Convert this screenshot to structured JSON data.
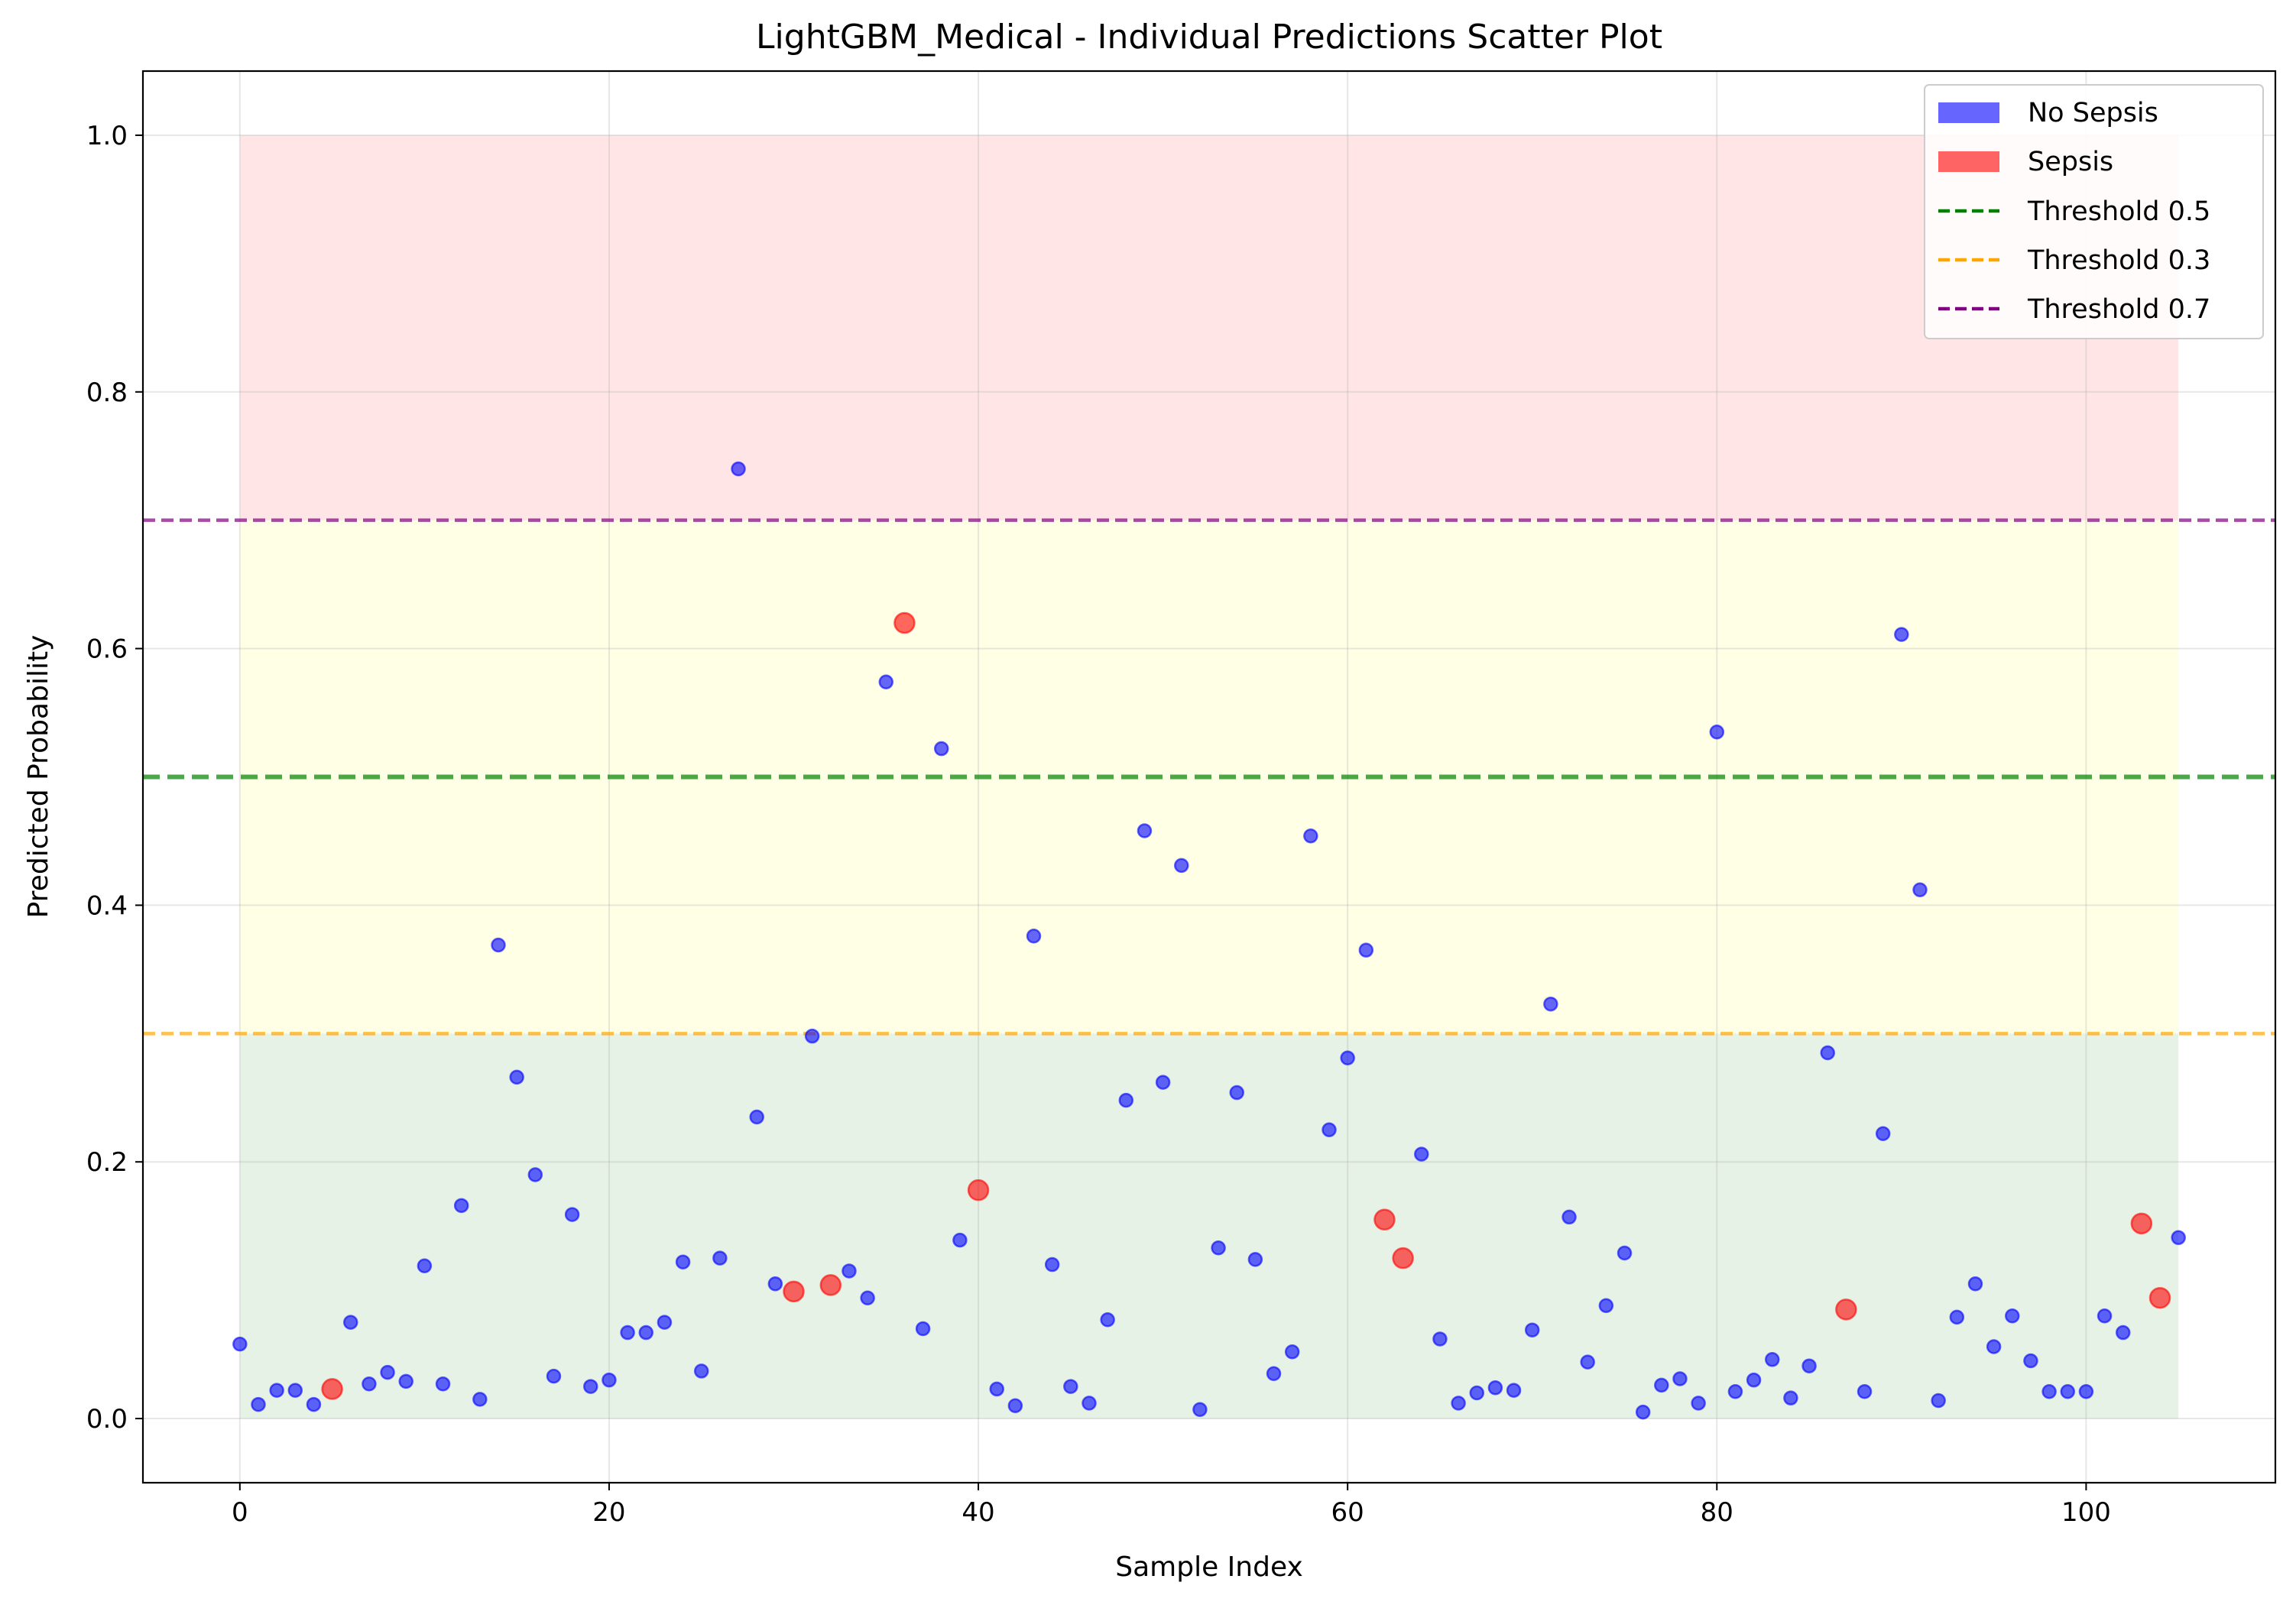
{
  "chart_data": {
    "type": "scatter",
    "title": "LightGBM_Medical - Individual Predictions Scatter Plot",
    "xlabel": "Sample Index",
    "ylabel": "Predicted Probability",
    "xlim": [
      -5.25,
      110.25
    ],
    "ylim": [
      -0.05,
      1.05
    ],
    "xticks": [
      "0",
      "20",
      "40",
      "60",
      "80",
      "100"
    ],
    "yticks": [
      "0.0",
      "0.2",
      "0.4",
      "0.6",
      "0.8",
      "1.0"
    ],
    "grid": true,
    "legend_position": "top-right",
    "zones": [
      {
        "from": 0.0,
        "to": 0.3,
        "color": "#008000"
      },
      {
        "from": 0.3,
        "to": 0.7,
        "color": "#ffff00"
      },
      {
        "from": 0.7,
        "to": 1.0,
        "color": "#ff0000"
      }
    ],
    "zone_x_range": [
      0,
      105
    ],
    "thresholds": [
      {
        "name": "Threshold 0.5",
        "value": 0.5,
        "color": "#008000"
      },
      {
        "name": "Threshold 0.3",
        "value": 0.3,
        "color": "#ffa500"
      },
      {
        "name": "Threshold 0.7",
        "value": 0.7,
        "color": "#800080"
      }
    ],
    "series": [
      {
        "name": "No Sepsis",
        "color": "#0000ff",
        "x": [
          0,
          1,
          2,
          3,
          4,
          6,
          7,
          8,
          9,
          10,
          11,
          12,
          13,
          14,
          15,
          16,
          17,
          18,
          19,
          20,
          21,
          22,
          23,
          24,
          25,
          26,
          27,
          28,
          29,
          31,
          33,
          34,
          35,
          37,
          38,
          39,
          41,
          42,
          43,
          44,
          45,
          46,
          47,
          48,
          49,
          50,
          51,
          52,
          53,
          54,
          55,
          56,
          57,
          58,
          59,
          60,
          61,
          64,
          65,
          66,
          67,
          68,
          69,
          70,
          71,
          72,
          73,
          74,
          75,
          76,
          77,
          78,
          79,
          80,
          81,
          82,
          83,
          84,
          85,
          86,
          88,
          89,
          90,
          91,
          92,
          93,
          94,
          95,
          96,
          97,
          98,
          99,
          100,
          101,
          102,
          105
        ],
        "y": [
          0.058,
          0.011,
          0.022,
          0.022,
          0.011,
          0.075,
          0.027,
          0.036,
          0.029,
          0.119,
          0.027,
          0.166,
          0.015,
          0.369,
          0.266,
          0.19,
          0.033,
          0.159,
          0.025,
          0.03,
          0.067,
          0.067,
          0.075,
          0.122,
          0.037,
          0.125,
          0.74,
          0.235,
          0.105,
          0.298,
          0.115,
          0.094,
          0.574,
          0.07,
          0.522,
          0.139,
          0.023,
          0.01,
          0.376,
          0.12,
          0.025,
          0.012,
          0.077,
          0.248,
          0.458,
          0.262,
          0.431,
          0.007,
          0.133,
          0.254,
          0.124,
          0.035,
          0.052,
          0.454,
          0.225,
          0.281,
          0.365,
          0.206,
          0.062,
          0.012,
          0.02,
          0.024,
          0.022,
          0.069,
          0.323,
          0.157,
          0.044,
          0.088,
          0.129,
          0.005,
          0.026,
          0.031,
          0.012,
          0.535,
          0.021,
          0.03,
          0.046,
          0.016,
          0.041,
          0.285,
          0.021,
          0.222,
          0.611,
          0.412,
          0.014,
          0.079,
          0.105,
          0.056,
          0.08,
          0.045,
          0.021,
          0.021,
          0.021,
          0.08,
          0.067,
          0.141
        ]
      },
      {
        "name": "Sepsis",
        "color": "#ff0000",
        "x": [
          5,
          30,
          32,
          36,
          40,
          62,
          63,
          87,
          103,
          104
        ],
        "y": [
          0.023,
          0.099,
          0.104,
          0.62,
          0.178,
          0.155,
          0.125,
          0.085,
          0.152,
          0.094
        ]
      }
    ]
  }
}
